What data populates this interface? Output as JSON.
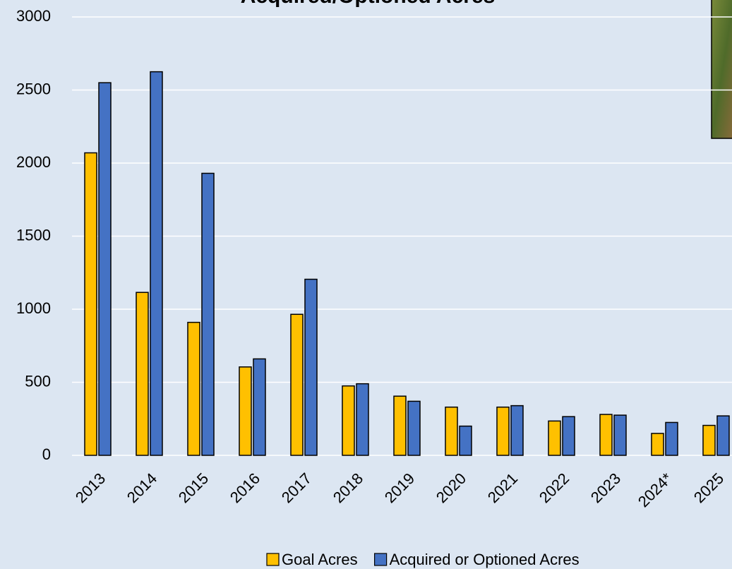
{
  "chart_data": {
    "type": "bar",
    "title": "Acquired/Optioned Acres",
    "categories": [
      "2013",
      "2014",
      "2015",
      "2016",
      "2017",
      "2018",
      "2019",
      "2020",
      "2021",
      "2022",
      "2023",
      "2024*",
      "2025"
    ],
    "series": [
      {
        "name": "Goal Acres",
        "color": "#ffc000",
        "values": [
          2070,
          1115,
          910,
          605,
          965,
          475,
          405,
          330,
          330,
          235,
          280,
          150,
          205
        ]
      },
      {
        "name": "Acquired or Optioned Acres",
        "color": "#4472c4",
        "values": [
          2550,
          2625,
          1930,
          660,
          1205,
          490,
          370,
          200,
          340,
          265,
          275,
          225,
          270
        ]
      }
    ],
    "ylim": [
      0,
      3000
    ],
    "yticks": [
      0,
      500,
      1000,
      1500,
      2000,
      2500,
      3000
    ],
    "grid": true
  }
}
